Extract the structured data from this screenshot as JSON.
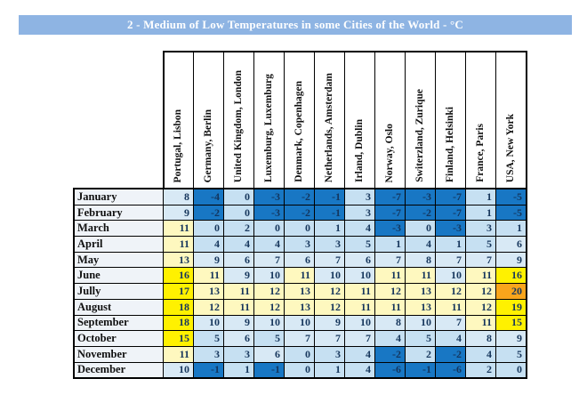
{
  "title": "2 - Medium of Low Temperatures in some Cities of the World - °C",
  "palette": {
    "title_bg": "#8EB4E3",
    "title_fg": "#FFFFFF",
    "value_fg": "#17375D",
    "negative_fg": "#13365F",
    "border": "#000000",
    "month_label_bg": "#EFF3F8"
  },
  "chart_data": {
    "type": "heatmap",
    "title": "2 - Medium of Low Temperatures in some Cities of the World - °C",
    "unit": "°C",
    "value_range": [
      -7,
      20
    ],
    "legend_note": "cell color scale: dark blue (below 0) -> light blue -> pale yellow -> bright yellow -> orange (20)",
    "columns": [
      "Portugal, Lisbon",
      "Germany, Berlin",
      "United Kingdom, London",
      "Luxemburg, Luxemburg",
      "Denmark, Copenhagen",
      "Netherlands, Amsterdam",
      "Irland, Dublin",
      "Norway, Oslo",
      "Switerzland, Zurique",
      "Finland, Helsinki",
      "France, Paris",
      "USA, New York"
    ],
    "rows": [
      "January",
      "February",
      "March",
      "April",
      "May",
      "June",
      "Jully",
      "August",
      "September",
      "October",
      "November",
      "December"
    ],
    "values": [
      [
        8,
        -4,
        0,
        -3,
        -2,
        -1,
        3,
        -7,
        -3,
        -7,
        1,
        -5
      ],
      [
        9,
        -2,
        0,
        -3,
        -2,
        -1,
        3,
        -7,
        -2,
        -7,
        1,
        -5
      ],
      [
        11,
        0,
        2,
        0,
        0,
        1,
        4,
        -3,
        0,
        -3,
        3,
        1
      ],
      [
        11,
        4,
        4,
        4,
        3,
        3,
        5,
        1,
        4,
        1,
        5,
        6
      ],
      [
        13,
        9,
        6,
        7,
        6,
        7,
        6,
        7,
        8,
        7,
        7,
        9
      ],
      [
        16,
        11,
        9,
        10,
        11,
        10,
        10,
        11,
        11,
        10,
        11,
        16
      ],
      [
        17,
        13,
        11,
        12,
        13,
        12,
        11,
        12,
        13,
        12,
        12,
        20
      ],
      [
        18,
        12,
        11,
        12,
        13,
        12,
        11,
        11,
        13,
        11,
        12,
        19
      ],
      [
        18,
        10,
        9,
        10,
        10,
        9,
        10,
        8,
        10,
        7,
        11,
        15
      ],
      [
        15,
        5,
        6,
        5,
        7,
        7,
        7,
        4,
        5,
        4,
        8,
        9
      ],
      [
        11,
        3,
        3,
        6,
        0,
        3,
        4,
        -2,
        2,
        -2,
        4,
        5
      ],
      [
        10,
        -1,
        1,
        -1,
        0,
        1,
        4,
        -6,
        -1,
        -6,
        2,
        0
      ]
    ],
    "color_scale": [
      {
        "max": -1,
        "bg": "#1877C4",
        "fg": "#13365F"
      },
      {
        "max": 5,
        "bg": "#C6E0F2",
        "fg": "#17375D"
      },
      {
        "max": 10,
        "bg": "#D8E9F5",
        "fg": "#17375D"
      },
      {
        "max": 14,
        "bg": "#FEF8BF",
        "fg": "#17375D"
      },
      {
        "max": 19,
        "bg": "#FFF100",
        "fg": "#17375D"
      },
      {
        "max": 999,
        "bg": "#F9A51B",
        "fg": "#17375D"
      }
    ]
  }
}
